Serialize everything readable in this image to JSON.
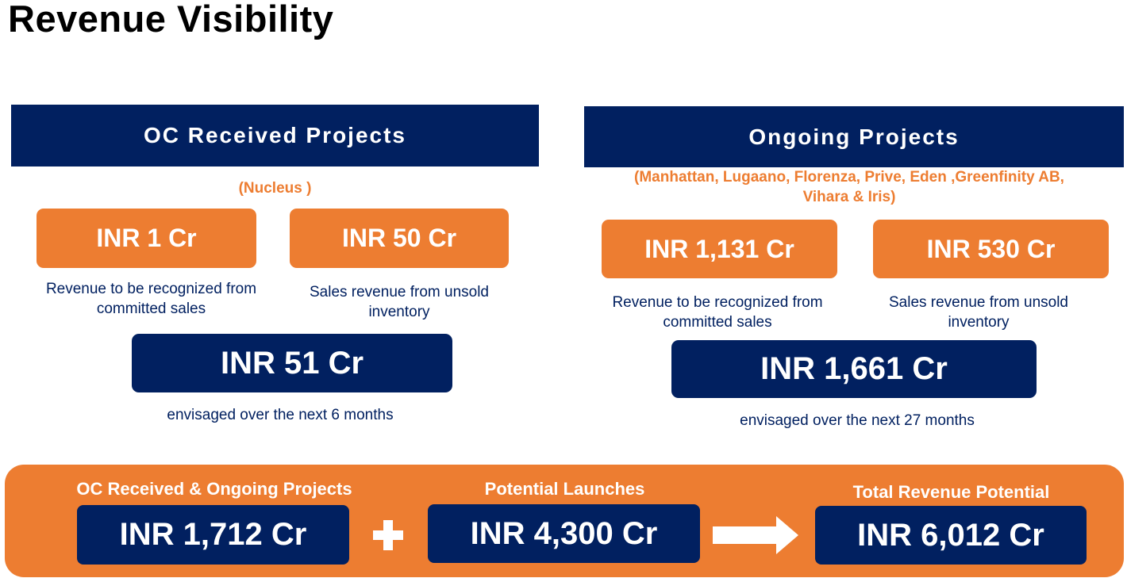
{
  "page": {
    "title": "Revenue Visibility"
  },
  "oc_section": {
    "header": "OC Received Projects",
    "subtitle": "(Nucleus )",
    "card_committed": {
      "value": "INR 1 Cr",
      "caption_line1": "Revenue to  be recognized from",
      "caption_line2": "committed sales"
    },
    "card_unsold": {
      "value": "INR 50 Cr",
      "caption_line1": "Sales revenue from unsold",
      "caption_line2": "inventory"
    },
    "total": {
      "value": "INR 51 Cr",
      "caption": "envisaged over the next 6 months"
    }
  },
  "ongoing_section": {
    "header": "Ongoing Projects",
    "subtitle_line1": "(Manhattan, Lugaano, Florenza, Prive, Eden ,Greenfinity AB,",
    "subtitle_line2": "Vihara & Iris)",
    "card_committed": {
      "value": "INR 1,131 Cr",
      "caption_line1": "Revenue to be recognized from",
      "caption_line2": "committed sales"
    },
    "card_unsold": {
      "value": "INR 530 Cr",
      "caption_line1": "Sales revenue from unsold",
      "caption_line2": "inventory"
    },
    "total": {
      "value": "INR 1,661 Cr",
      "caption": "envisaged over the next 27 months"
    }
  },
  "summary": {
    "combined": {
      "label": "OC Received & Ongoing Projects",
      "value": "INR 1,712 Cr"
    },
    "launches": {
      "label": "Potential Launches",
      "value": "INR 4,300 Cr"
    },
    "total": {
      "label": "Total Revenue Potential",
      "value": "INR 6,012 Cr"
    },
    "icons": {
      "plus": "plus-icon",
      "arrow": "arrow-right-icon"
    },
    "colors": {
      "orange": "#ED7D31",
      "navy": "#012060"
    }
  }
}
